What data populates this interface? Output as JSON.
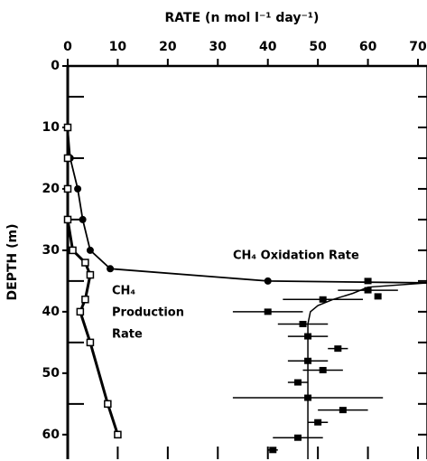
{
  "chart_data": {
    "type": "profile",
    "x_label": "RATE (n mol l⁻¹ day⁻¹)",
    "y_label": "DEPTH (m)",
    "xlim": [
      0,
      70
    ],
    "xticks": [
      0,
      10,
      20,
      30,
      40,
      50,
      60,
      70
    ],
    "ylim": [
      0,
      64
    ],
    "yticks": [
      0,
      10,
      20,
      30,
      40,
      50,
      60
    ],
    "yminor_ticks": [
      5,
      15,
      25,
      35,
      45,
      55
    ],
    "color": "#000000",
    "series": [
      {
        "label": "CH₄ Oxidation Rate",
        "marker": "circle",
        "depth": [
          10,
          15,
          20,
          25,
          30,
          33,
          35,
          35.3
        ],
        "values": [
          0,
          0.5,
          2,
          3,
          4.5,
          8.5,
          40,
          72
        ]
      },
      {
        "label_lines": [
          "CH₄",
          "Production",
          "Rate"
        ],
        "marker": "square",
        "depth": [
          10,
          15,
          20,
          25,
          30,
          32,
          34,
          38,
          40,
          45,
          55,
          60
        ],
        "values": [
          0,
          0,
          0,
          0,
          1,
          3.5,
          4.5,
          3.5,
          2.5,
          4.5,
          8,
          10
        ]
      }
    ],
    "points": {
      "depth": [
        35,
        36.5,
        37.5,
        38,
        40,
        42,
        44,
        46,
        48,
        49.5,
        51.5,
        54,
        56,
        58,
        60.5,
        62.5
      ],
      "values": [
        60,
        60,
        62,
        51,
        40,
        47,
        48,
        54,
        48,
        51,
        46,
        48,
        55,
        50,
        46,
        41
      ],
      "errors": [
        0,
        6,
        0,
        8,
        7,
        5,
        4,
        2,
        4,
        4,
        2,
        15,
        5,
        2,
        5,
        1
      ]
    },
    "fit": {
      "depth": [
        35.3,
        36,
        37,
        38,
        39,
        40,
        42,
        64
      ],
      "values": [
        72,
        60,
        57,
        53,
        50,
        48.5,
        48,
        48
      ]
    }
  }
}
